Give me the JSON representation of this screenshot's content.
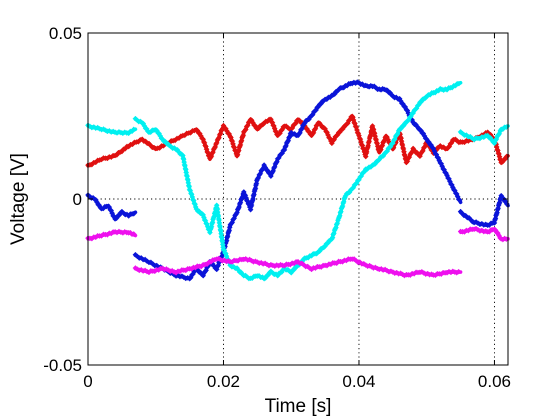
{
  "chart_data": {
    "type": "scatter",
    "xlabel": "Time [s]",
    "ylabel": "Voltage [V]",
    "xlim": [
      0,
      0.062
    ],
    "ylim": [
      -0.05,
      0.05
    ],
    "xticks": [
      0,
      0.02,
      0.04,
      0.06
    ],
    "xtick_labels": [
      "0",
      "0.02",
      "0.04",
      "0.06"
    ],
    "yticks": [
      -0.05,
      0,
      0.05
    ],
    "ytick_labels": [
      "-0.05",
      "0",
      "0.05"
    ],
    "grid": "dotted lines at x = 0.02, 0.04, 0.06 and y = 0",
    "legend": "none",
    "marker": "diamond",
    "series": [
      {
        "color": "#e01010",
        "segments": [
          {
            "x": [
              0,
              0.002,
              0.004,
              0.006,
              0.008,
              0.01,
              0.012,
              0.014,
              0.016,
              0.017,
              0.018,
              0.019,
              0.02,
              0.021,
              0.022,
              0.023,
              0.024,
              0.025,
              0.026,
              0.027,
              0.028,
              0.029,
              0.03,
              0.031,
              0.032,
              0.033,
              0.034,
              0.035,
              0.036,
              0.037,
              0.038,
              0.039,
              0.04,
              0.041,
              0.042,
              0.043,
              0.044,
              0.045,
              0.046,
              0.047,
              0.048,
              0.049,
              0.05,
              0.051,
              0.052,
              0.053,
              0.054,
              0.055
            ],
            "y": [
              0.01,
              0.012,
              0.013,
              0.016,
              0.018,
              0.015,
              0.017,
              0.019,
              0.021,
              0.018,
              0.012,
              0.017,
              0.022,
              0.019,
              0.013,
              0.02,
              0.024,
              0.021,
              0.023,
              0.024,
              0.019,
              0.022,
              0.021,
              0.024,
              0.022,
              0.019,
              0.023,
              0.021,
              0.017,
              0.02,
              0.022,
              0.025,
              0.019,
              0.013,
              0.022,
              0.014,
              0.019,
              0.015,
              0.02,
              0.011,
              0.015,
              0.013,
              0.017,
              0.014,
              0.016,
              0.015,
              0.018,
              0.017
            ]
          },
          {
            "x": [
              0.055,
              0.057,
              0.059,
              0.06,
              0.061,
              0.062
            ],
            "y": [
              0.017,
              0.018,
              0.02,
              0.018,
              0.011,
              0.013
            ]
          }
        ]
      },
      {
        "color": "#0a14d8",
        "segments": [
          {
            "x": [
              0,
              0.001,
              0.002,
              0.003,
              0.004,
              0.005,
              0.006,
              0.007
            ],
            "y": [
              0.001,
              0.0,
              -0.003,
              -0.002,
              -0.006,
              -0.004,
              -0.005,
              -0.004
            ]
          },
          {
            "x": [
              0.007,
              0.009,
              0.011,
              0.013,
              0.015,
              0.016,
              0.017,
              0.018,
              0.019,
              0.02,
              0.021,
              0.022,
              0.023,
              0.024,
              0.025,
              0.026,
              0.027,
              0.028,
              0.029,
              0.03,
              0.031,
              0.032,
              0.033,
              0.034,
              0.035,
              0.036,
              0.037,
              0.038,
              0.039,
              0.04,
              0.041,
              0.042,
              0.043,
              0.044,
              0.045,
              0.046,
              0.047,
              0.048,
              0.049,
              0.05,
              0.051,
              0.052,
              0.053,
              0.054,
              0.055
            ],
            "y": [
              -0.017,
              -0.019,
              -0.021,
              -0.023,
              -0.024,
              -0.021,
              -0.023,
              -0.019,
              -0.021,
              -0.016,
              -0.008,
              -0.004,
              0.002,
              -0.003,
              0.006,
              0.01,
              0.007,
              0.012,
              0.015,
              0.02,
              0.019,
              0.023,
              0.025,
              0.028,
              0.03,
              0.031,
              0.033,
              0.034,
              0.035,
              0.035,
              0.034,
              0.034,
              0.033,
              0.033,
              0.031,
              0.03,
              0.027,
              0.023,
              0.021,
              0.018,
              0.015,
              0.011,
              0.007,
              0.003,
              -0.001
            ]
          },
          {
            "x": [
              0.055,
              0.057,
              0.059,
              0.06,
              0.061,
              0.062
            ],
            "y": [
              -0.004,
              -0.007,
              -0.008,
              -0.007,
              0.001,
              -0.002
            ]
          }
        ]
      },
      {
        "color": "#00f0f0",
        "segments": [
          {
            "x": [
              0,
              0.002,
              0.004,
              0.006,
              0.007
            ],
            "y": [
              0.022,
              0.021,
              0.02,
              0.02,
              0.021
            ]
          },
          {
            "x": [
              0.007,
              0.008,
              0.009,
              0.01,
              0.011,
              0.012,
              0.013,
              0.014,
              0.015,
              0.016,
              0.017,
              0.018,
              0.019,
              0.02,
              0.021,
              0.022,
              0.023,
              0.024,
              0.025,
              0.026,
              0.027,
              0.028,
              0.029,
              0.03,
              0.031,
              0.032,
              0.033,
              0.034,
              0.035,
              0.036,
              0.037,
              0.038,
              0.039,
              0.04,
              0.041,
              0.042,
              0.043,
              0.044,
              0.045,
              0.046,
              0.047,
              0.048,
              0.049,
              0.05,
              0.051,
              0.052,
              0.053,
              0.054,
              0.055
            ],
            "y": [
              0.024,
              0.023,
              0.02,
              0.021,
              0.018,
              0.016,
              0.015,
              0.013,
              0.003,
              -0.003,
              -0.005,
              -0.01,
              -0.002,
              -0.015,
              -0.02,
              -0.021,
              -0.023,
              -0.024,
              -0.023,
              -0.024,
              -0.022,
              -0.023,
              -0.021,
              -0.022,
              -0.02,
              -0.018,
              -0.017,
              -0.016,
              -0.014,
              -0.012,
              -0.006,
              0.001,
              0.003,
              0.006,
              0.009,
              0.01,
              0.012,
              0.014,
              0.017,
              0.021,
              0.023,
              0.026,
              0.029,
              0.031,
              0.032,
              0.033,
              0.033,
              0.034,
              0.035
            ]
          },
          {
            "x": [
              0.055,
              0.057,
              0.059,
              0.06,
              0.061,
              0.062
            ],
            "y": [
              0.02,
              0.018,
              0.019,
              0.017,
              0.021,
              0.022
            ]
          }
        ]
      },
      {
        "color": "#ee10ee",
        "segments": [
          {
            "x": [
              0,
              0.002,
              0.004,
              0.006,
              0.007
            ],
            "y": [
              -0.012,
              -0.011,
              -0.01,
              -0.01,
              -0.011
            ]
          },
          {
            "x": [
              0.007,
              0.009,
              0.011,
              0.013,
              0.015,
              0.017,
              0.019,
              0.021,
              0.023,
              0.025,
              0.027,
              0.029,
              0.031,
              0.033,
              0.035,
              0.037,
              0.039,
              0.041,
              0.043,
              0.045,
              0.047,
              0.049,
              0.051,
              0.053,
              0.055
            ],
            "y": [
              -0.021,
              -0.022,
              -0.021,
              -0.022,
              -0.021,
              -0.02,
              -0.018,
              -0.019,
              -0.018,
              -0.019,
              -0.02,
              -0.02,
              -0.019,
              -0.021,
              -0.02,
              -0.019,
              -0.018,
              -0.02,
              -0.021,
              -0.022,
              -0.023,
              -0.022,
              -0.023,
              -0.022,
              -0.022
            ]
          },
          {
            "x": [
              0.055,
              0.057,
              0.059,
              0.06,
              0.061,
              0.062
            ],
            "y": [
              -0.01,
              -0.009,
              -0.01,
              -0.009,
              -0.012,
              -0.012
            ]
          }
        ]
      }
    ]
  }
}
